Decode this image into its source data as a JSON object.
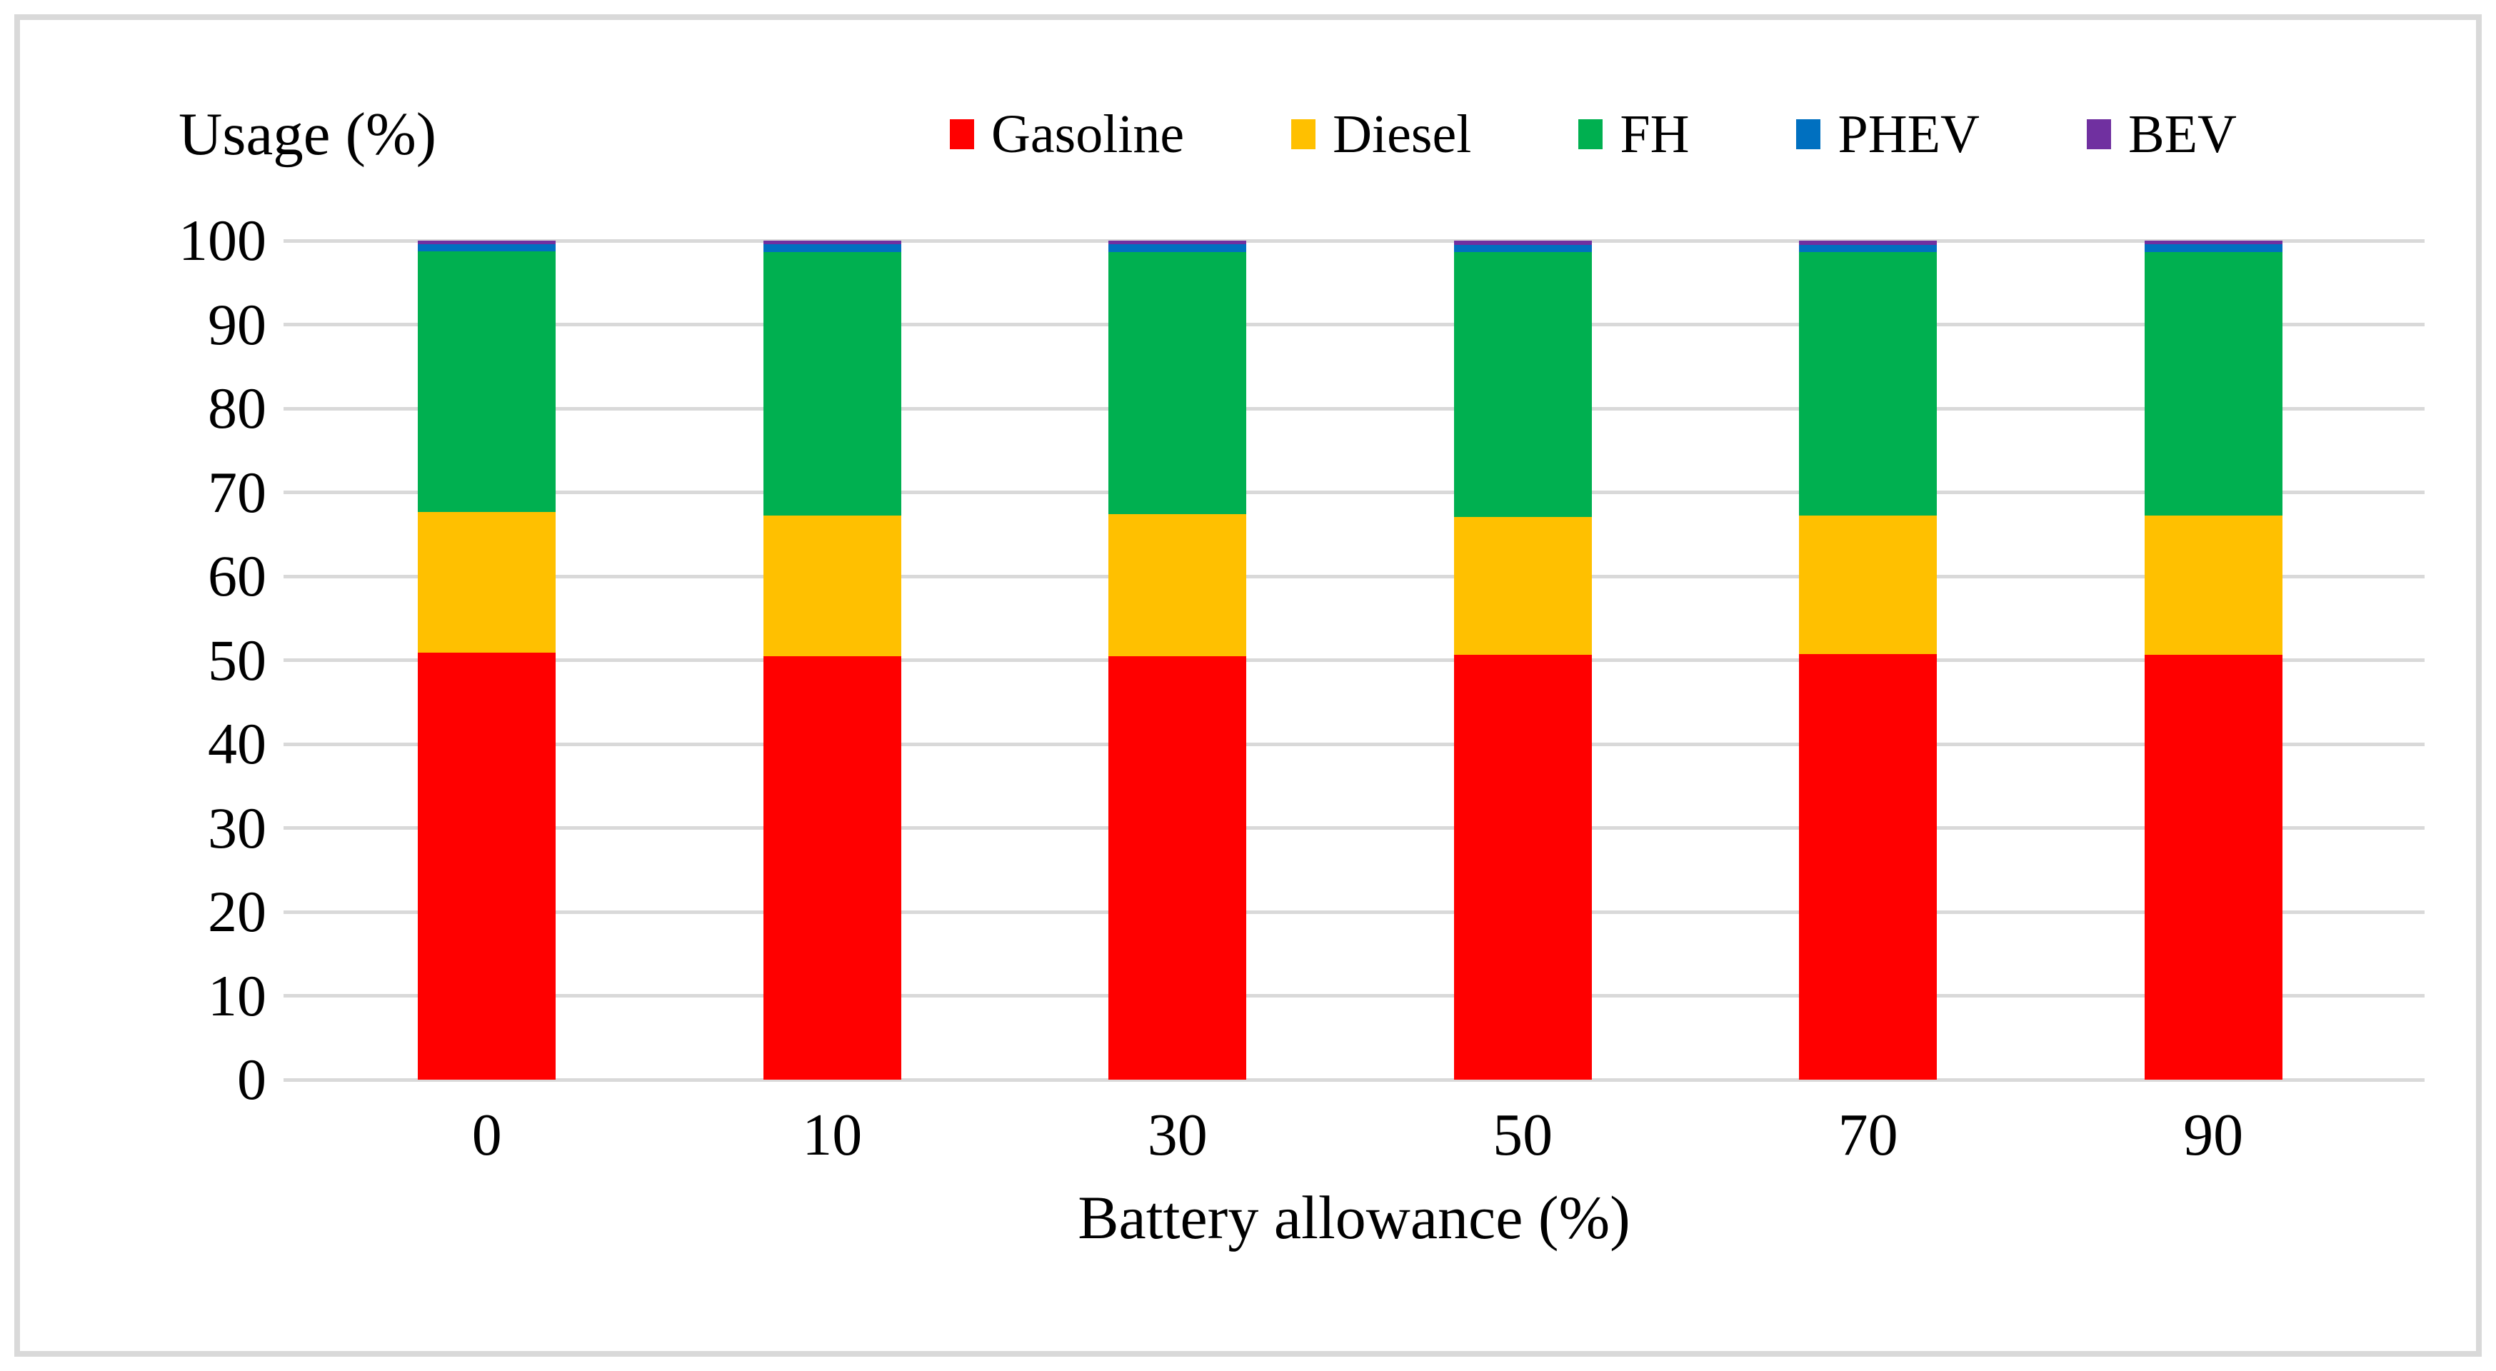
{
  "figure": {
    "background": "#FFFFFF",
    "frame_border_color": "#D9D9D9"
  },
  "chart_data": {
    "type": "bar",
    "stacked": true,
    "ylabel": "Usage (%)",
    "xlabel": "Battery allowance (%)",
    "ylim": [
      0,
      100
    ],
    "yticks": [
      0,
      10,
      20,
      30,
      40,
      50,
      60,
      70,
      80,
      90,
      100
    ],
    "grid": true,
    "gridline_color": "#D9D9D9",
    "legend_position": "top",
    "categories": [
      "0",
      "10",
      "30",
      "50",
      "70",
      "90"
    ],
    "series": [
      {
        "name": "Gasoline",
        "color": "#FF0000",
        "values": [
          50.9,
          50.5,
          50.5,
          50.6,
          50.7,
          50.6
        ]
      },
      {
        "name": "Diesel",
        "color": "#FFC000",
        "values": [
          16.8,
          16.7,
          16.9,
          16.5,
          16.5,
          16.6
        ]
      },
      {
        "name": "FH",
        "color": "#00B050",
        "values": [
          31.0,
          31.4,
          31.2,
          31.5,
          31.4,
          31.4
        ]
      },
      {
        "name": "PHEV",
        "color": "#0070C0",
        "values": [
          0.9,
          1.0,
          1.0,
          0.9,
          0.9,
          1.0
        ]
      },
      {
        "name": "BEV",
        "color": "#7030A0",
        "values": [
          0.4,
          0.4,
          0.4,
          0.5,
          0.5,
          0.4
        ]
      }
    ]
  }
}
